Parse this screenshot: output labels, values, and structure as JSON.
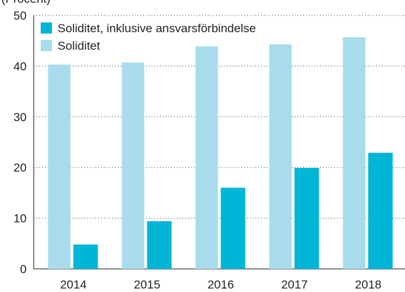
{
  "chart_data": {
    "type": "bar",
    "y_label": "(Procent)",
    "categories": [
      "2014",
      "2015",
      "2016",
      "2017",
      "2018"
    ],
    "series": [
      {
        "name": "Soliditet, inklusive ansvarsförbindelse",
        "color": "#00b5d6",
        "values": [
          4.8,
          9.4,
          16.0,
          19.9,
          22.9
        ]
      },
      {
        "name": "Soliditet",
        "color": "#a8dcec",
        "values": [
          40.3,
          40.7,
          43.9,
          44.3,
          45.7
        ]
      }
    ],
    "ylim": [
      0,
      50
    ],
    "yticks": [
      0,
      10,
      20,
      30,
      40,
      50
    ],
    "grid": true
  }
}
